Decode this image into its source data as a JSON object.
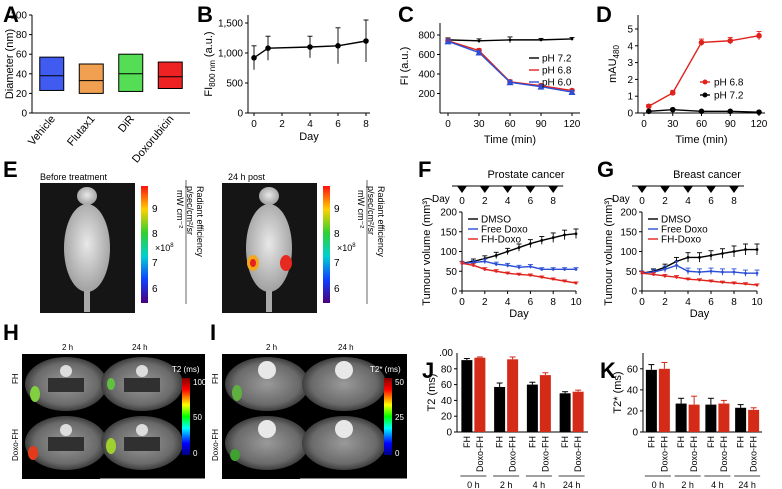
{
  "panel_labels": {
    "A": "A",
    "B": "B",
    "C": "C",
    "D": "D",
    "E": "E",
    "F": "F",
    "G": "G",
    "H": "H",
    "I": "I",
    "J": "J",
    "K": "K"
  },
  "colors": {
    "red": "#e0221c",
    "blue": "#2b4fd6",
    "black": "#000000",
    "red_bar": "#d42a18",
    "vehicle": "#3f5bf0",
    "flutax": "#f0a050",
    "dir": "#55dd55",
    "doxo": "#ee2222"
  },
  "chart_data": [
    {
      "id": "A",
      "type": "box",
      "ylabel": "Diameter (nm)",
      "ylim": [
        0,
        100
      ],
      "yticks": [
        0,
        20,
        40,
        60,
        80,
        100
      ],
      "categories": [
        "Vehicle",
        "Flutax1",
        "DiR",
        "Doxorubicin"
      ],
      "boxes": [
        {
          "low": 23,
          "median": 38,
          "high": 57
        },
        {
          "low": 20,
          "median": 33,
          "high": 50
        },
        {
          "low": 22,
          "median": 40,
          "high": 60
        },
        {
          "low": 25,
          "median": 37,
          "high": 52
        }
      ]
    },
    {
      "id": "B",
      "type": "line",
      "ylabel": "FI",
      "ylabel_sub": "800 nm",
      "ylabel_unit": " (a.u.)",
      "xlabel": "Day",
      "ylim": [
        0,
        1500
      ],
      "yticks": [
        0,
        500,
        1000,
        1500
      ],
      "ytick_labels": [
        "0",
        "500",
        "1,000",
        "1,500"
      ],
      "xlim": [
        0,
        8
      ],
      "xticks": [
        0,
        2,
        4,
        6,
        8
      ],
      "x": [
        0,
        1,
        4,
        6,
        8
      ],
      "y": [
        920,
        1080,
        1100,
        1120,
        1200
      ],
      "err": [
        200,
        200,
        180,
        300,
        350
      ]
    },
    {
      "id": "C",
      "type": "line",
      "ylabel": "FI (a.u.)",
      "xlabel": "Time (min)",
      "ylim": [
        0,
        800
      ],
      "yticks": [
        200,
        400,
        600,
        800
      ],
      "xlim": [
        0,
        120
      ],
      "xticks": [
        0,
        30,
        60,
        90,
        120
      ],
      "series": [
        {
          "name": "pH 7.2",
          "x": [
            0,
            30,
            60,
            90,
            120
          ],
          "y": [
            750,
            740,
            750,
            750,
            760
          ],
          "err": [
            20,
            20,
            30,
            15,
            15
          ]
        },
        {
          "name": "pH 6.8",
          "x": [
            0,
            30,
            60,
            90,
            120
          ],
          "y": [
            740,
            640,
            320,
            280,
            230
          ],
          "err": [
            20,
            20,
            20,
            20,
            15
          ]
        },
        {
          "name": "pH 6.0",
          "x": [
            0,
            30,
            60,
            90,
            120
          ],
          "y": [
            735,
            620,
            315,
            270,
            215
          ],
          "err": [
            20,
            20,
            20,
            20,
            15
          ]
        }
      ]
    },
    {
      "id": "D",
      "type": "line",
      "ylabel": "mAU",
      "ylabel_sub": "480",
      "xlabel": "Time (min)",
      "ylim": [
        0,
        5
      ],
      "yticks": [
        0,
        1,
        2,
        3,
        4,
        5
      ],
      "xlim": [
        0,
        120
      ],
      "xticks": [
        0,
        30,
        60,
        90,
        120
      ],
      "series": [
        {
          "name": "pH 6.8",
          "x": [
            5,
            30,
            60,
            90,
            120
          ],
          "y": [
            0.4,
            1.2,
            4.2,
            4.3,
            4.6
          ],
          "err": [
            0.1,
            0.15,
            0.2,
            0.2,
            0.25
          ]
        },
        {
          "name": "pH 7.2",
          "x": [
            5,
            30,
            60,
            90,
            120
          ],
          "y": [
            0.1,
            0.2,
            0.1,
            0.1,
            0.05
          ],
          "err": [
            0.05,
            0.05,
            0.05,
            0.05,
            0.05
          ]
        }
      ]
    },
    {
      "id": "F",
      "type": "line",
      "title": "Prostate cancer",
      "ylabel": "Tumour volume (mm³)",
      "xlabel": "Day",
      "ylim": [
        0,
        200
      ],
      "yticks": [
        0,
        50,
        100,
        150,
        200
      ],
      "xlim": [
        0,
        10
      ],
      "xticks": [
        0,
        2,
        4,
        6,
        8,
        10
      ],
      "dose_label": "Day",
      "dose_days": [
        0,
        2,
        4,
        6,
        8
      ],
      "series": [
        {
          "name": "DMSO",
          "x": [
            0,
            1,
            2,
            3,
            4,
            5,
            6,
            7,
            8,
            9,
            10
          ],
          "y": [
            70,
            75,
            82,
            90,
            100,
            110,
            120,
            128,
            135,
            142,
            145
          ],
          "err": [
            5,
            6,
            7,
            8,
            8,
            9,
            10,
            10,
            12,
            12,
            12
          ]
        },
        {
          "name": "Free Doxo",
          "x": [
            0,
            1,
            2,
            3,
            4,
            5,
            6,
            7,
            8,
            9,
            10
          ],
          "y": [
            70,
            72,
            75,
            68,
            65,
            60,
            62,
            55,
            55,
            55,
            55
          ],
          "err": [
            5,
            5,
            6,
            5,
            5,
            5,
            5,
            4,
            4,
            4,
            4
          ]
        },
        {
          "name": "FH-Doxo",
          "x": [
            0,
            1,
            2,
            3,
            4,
            5,
            6,
            7,
            8,
            9,
            10
          ],
          "y": [
            70,
            65,
            55,
            50,
            45,
            42,
            40,
            35,
            30,
            25,
            20
          ],
          "err": [
            4,
            4,
            4,
            4,
            3,
            3,
            3,
            3,
            3,
            3,
            3
          ]
        }
      ]
    },
    {
      "id": "G",
      "type": "line",
      "title": "Breast cancer",
      "ylabel": "Tumour volume (mm³)",
      "xlabel": "Day",
      "ylim": [
        0,
        200
      ],
      "yticks": [
        0,
        50,
        100,
        150,
        200
      ],
      "xlim": [
        0,
        10
      ],
      "xticks": [
        0,
        2,
        4,
        6,
        8,
        10
      ],
      "dose_label": "Day",
      "dose_days": [
        0,
        2,
        4,
        6,
        8
      ],
      "series": [
        {
          "name": "DMSO",
          "x": [
            0,
            1,
            2,
            3,
            4,
            5,
            6,
            7,
            8,
            9,
            10
          ],
          "y": [
            45,
            50,
            60,
            75,
            85,
            85,
            90,
            95,
            100,
            105,
            105
          ],
          "err": [
            5,
            6,
            8,
            10,
            12,
            12,
            12,
            12,
            14,
            14,
            14
          ]
        },
        {
          "name": "Free Doxo",
          "x": [
            0,
            1,
            2,
            3,
            4,
            5,
            6,
            7,
            8,
            9,
            10
          ],
          "y": [
            45,
            48,
            55,
            65,
            50,
            48,
            50,
            48,
            48,
            45,
            45
          ],
          "err": [
            5,
            6,
            8,
            10,
            8,
            8,
            8,
            8,
            8,
            8,
            8
          ]
        },
        {
          "name": "FH-Doxo",
          "x": [
            0,
            1,
            2,
            3,
            4,
            5,
            6,
            7,
            8,
            9,
            10
          ],
          "y": [
            45,
            42,
            38,
            35,
            30,
            28,
            25,
            22,
            20,
            18,
            15
          ],
          "err": [
            4,
            4,
            4,
            4,
            3,
            3,
            3,
            3,
            3,
            3,
            3
          ]
        }
      ]
    },
    {
      "id": "J",
      "type": "bar",
      "ylabel": "T2 (ms)",
      "ylim": [
        0,
        100
      ],
      "yticks": [
        0,
        20,
        40,
        60,
        80
      ],
      "top_label": ".00",
      "groups": [
        "0 h",
        "2 h",
        "4 h",
        "24 h"
      ],
      "bar_names": [
        "FH",
        "Doxo-FH"
      ],
      "values": [
        [
          91,
          94
        ],
        [
          57,
          92
        ],
        [
          60,
          72
        ],
        [
          49,
          51
        ]
      ],
      "errs": [
        [
          2,
          1
        ],
        [
          5,
          3
        ],
        [
          3,
          3
        ],
        [
          2,
          2
        ]
      ]
    },
    {
      "id": "K",
      "type": "bar",
      "ylabel": "T2* (ms)",
      "ylim": [
        0,
        75
      ],
      "yticks": [
        0,
        20,
        40,
        60
      ],
      "groups": [
        "0 h",
        "2 h",
        "4 h",
        "24 h"
      ],
      "bar_names": [
        "FH",
        "Doxo-FH"
      ],
      "values": [
        [
          59,
          60
        ],
        [
          27,
          26
        ],
        [
          26,
          27
        ],
        [
          23,
          21
        ]
      ],
      "errs": [
        [
          5,
          6
        ],
        [
          5,
          8
        ],
        [
          6,
          3
        ],
        [
          3,
          2
        ]
      ]
    }
  ],
  "E": {
    "before": "Before treatment",
    "after": "24 h post",
    "cb_ticks": [
      "9",
      "8",
      "7",
      "6"
    ],
    "cb_mult": "×10",
    "cb_exp": "8",
    "cb_title": "Radiant efficiency",
    "cb_unit1": "p/sec/cm²/sr",
    "cb_unit2": "mW cm⁻²"
  },
  "H": {
    "t1": "2 h",
    "t2": "24 h",
    "row1": "FH",
    "row2": "Doxo-FH",
    "cb_title": "T2 (ms)",
    "cb_ticks": [
      "100",
      "50",
      "0"
    ]
  },
  "I": {
    "t1": "2 h",
    "t2": "24 h",
    "row1": "FH",
    "row2": "Doxo-FH",
    "cb_title": "T2* (ms)",
    "cb_ticks": [
      "50",
      "25",
      "0"
    ]
  }
}
